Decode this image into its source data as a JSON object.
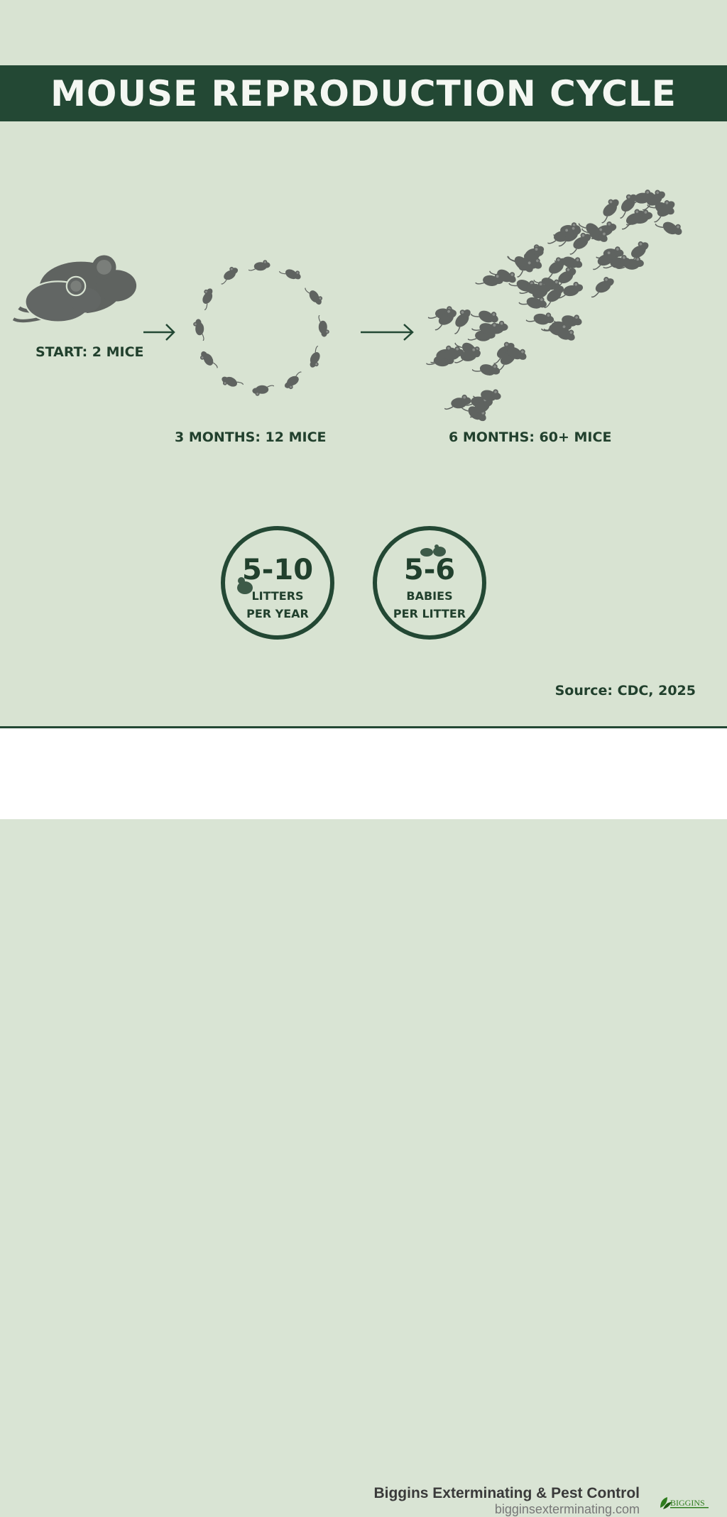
{
  "title": "MOUSE REPRODUCTION CYCLE",
  "stages": [
    {
      "label": "START: 2 MICE",
      "count": 2
    },
    {
      "label": "3 MONTHS: 12 MICE",
      "count": 12
    },
    {
      "label": "6 MONTHS: 60+ MICE",
      "count": 60
    }
  ],
  "stats": [
    {
      "value": "5-10",
      "line1": "LITTERS",
      "line2": "PER YEAR",
      "icon": "mouse-icon"
    },
    {
      "value": "5-6",
      "line1": "BABIES",
      "line2": "PER LITTER",
      "icon": "baby-mice-icon"
    }
  ],
  "source": "Source: CDC, 2025",
  "footer": {
    "company": "Biggins Exterminating & Pest Control",
    "url": "bigginsexterminating.com",
    "logo_text": "BIGGINS"
  },
  "colors": {
    "background": "#d8e3d2",
    "accent": "#234834",
    "mouse": "#5f6360"
  }
}
